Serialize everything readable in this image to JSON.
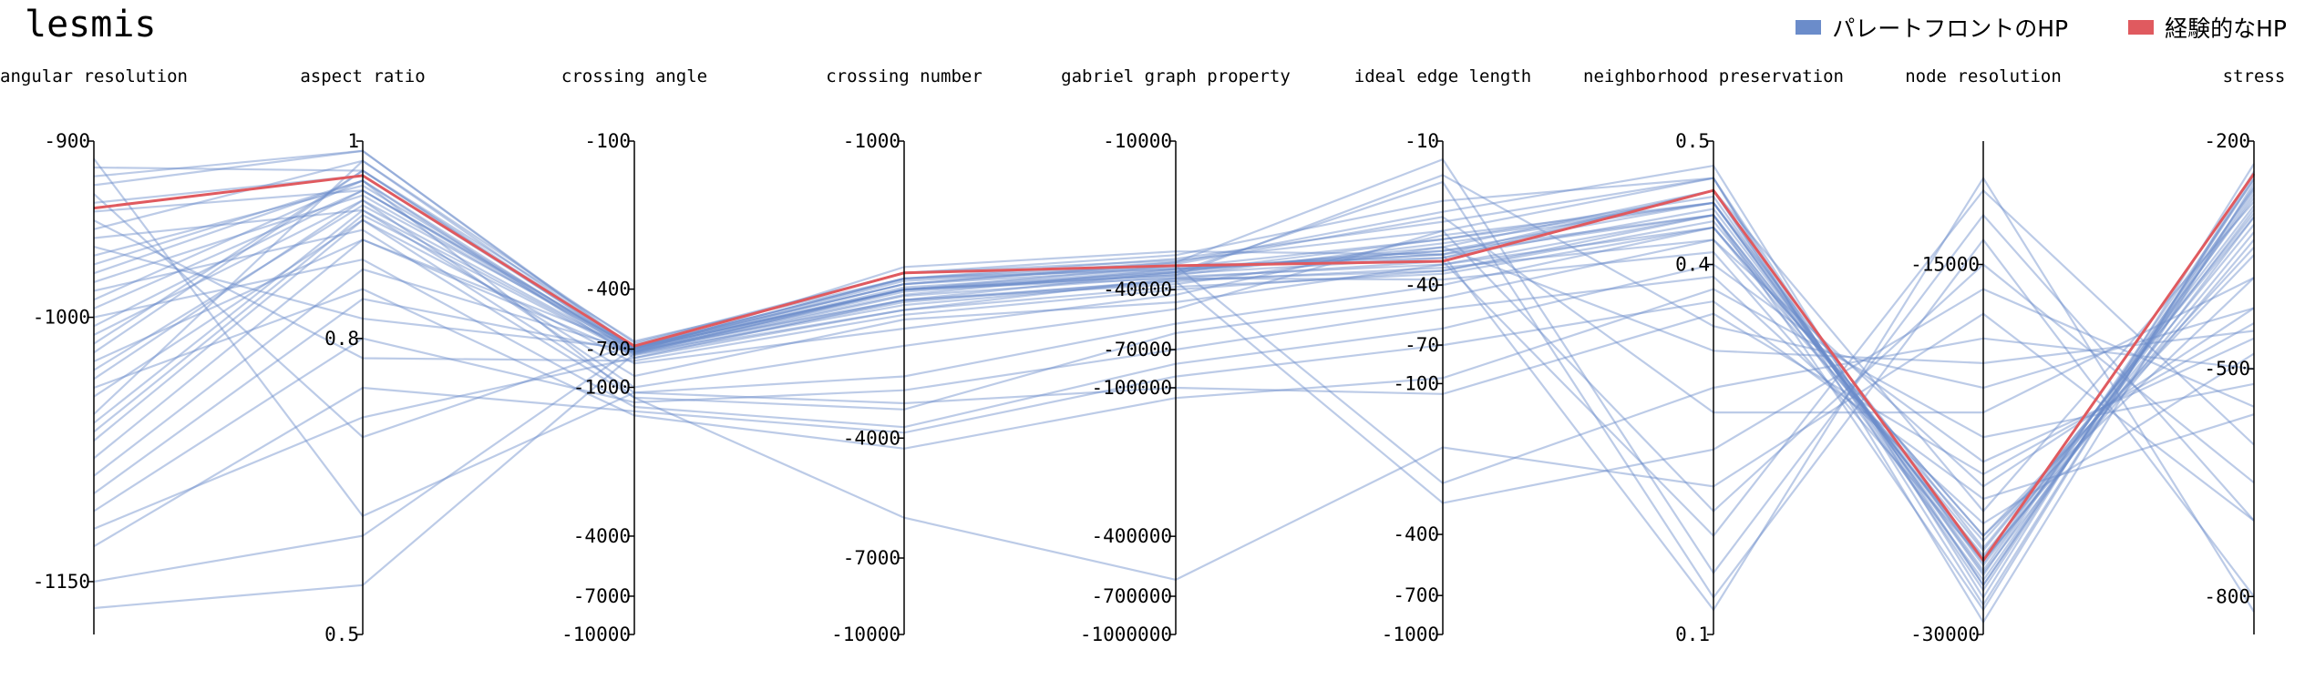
{
  "title": "lesmis",
  "legend": {
    "items": [
      {
        "label": "パレートフロントのHP",
        "color": "#6b8cca"
      },
      {
        "label": "経験的なHP",
        "color": "#e05a5f"
      }
    ]
  },
  "chart_data": {
    "type": "parallel-coordinates",
    "title": "lesmis",
    "grid": false,
    "legend_position": "top-right",
    "axes": [
      {
        "name": "angular resolution",
        "scale": "linear",
        "domain": [
          -900,
          -1180
        ],
        "ticks": [
          -900,
          -1000,
          -1150
        ]
      },
      {
        "name": "aspect ratio",
        "scale": "linear",
        "domain": [
          1,
          0.5
        ],
        "ticks": [
          1,
          0.8,
          0.5
        ]
      },
      {
        "name": "crossing angle",
        "scale": "symlog",
        "domain": [
          -100,
          -10000
        ],
        "ticks": [
          -100,
          -400,
          -700,
          -1000,
          -4000,
          -7000,
          -10000
        ]
      },
      {
        "name": "crossing number",
        "scale": "symlog",
        "domain": [
          -1000,
          -10000
        ],
        "ticks": [
          -1000,
          -4000,
          -7000,
          -10000
        ]
      },
      {
        "name": "gabriel graph property",
        "scale": "symlog",
        "domain": [
          -10000,
          -1000000
        ],
        "ticks": [
          -10000,
          -40000,
          -70000,
          -100000,
          -400000,
          -700000,
          -1000000
        ]
      },
      {
        "name": "ideal edge length",
        "scale": "symlog",
        "domain": [
          -10,
          -1000
        ],
        "ticks": [
          -10,
          -40,
          -70,
          -100,
          -400,
          -700,
          -1000
        ]
      },
      {
        "name": "neighborhood preservation",
        "scale": "linear",
        "domain": [
          0.5,
          0.1
        ],
        "ticks": [
          0.5,
          0.4,
          0.1
        ]
      },
      {
        "name": "node resolution",
        "scale": "linear",
        "domain": [
          -10000,
          -30000
        ],
        "ticks": [
          -15000,
          -30000
        ]
      },
      {
        "name": "stress",
        "scale": "linear",
        "domain": [
          -200,
          -850
        ],
        "ticks": [
          -200,
          -500,
          -800
        ]
      }
    ],
    "series": [
      {
        "name": "経験的なHP",
        "color": "#e05a5f",
        "values": [
          [
            -938,
            0.965,
            -680,
            -1850,
            -32000,
            -32,
            0.46,
            -27000,
            -243
          ]
        ]
      },
      {
        "name": "パレートフロントのHP",
        "color": "#6b8cca",
        "values": [
          [
            -915,
            0.97,
            -650,
            -1900,
            -30000,
            -22,
            0.47,
            -28000,
            -260
          ],
          [
            -925,
            0.99,
            -700,
            -2000,
            -34000,
            -26,
            0.45,
            -27500,
            -300
          ],
          [
            -940,
            0.95,
            -720,
            -1800,
            -28000,
            -30,
            0.44,
            -29000,
            -240
          ],
          [
            -955,
            0.93,
            -900,
            -2300,
            -45000,
            -33,
            0.43,
            -26000,
            -350
          ],
          [
            -970,
            0.96,
            -760,
            -2100,
            -38000,
            -28,
            0.46,
            -25000,
            -280
          ],
          [
            -985,
            0.91,
            -1100,
            -3500,
            -60000,
            -45,
            0.42,
            -24000,
            -420
          ],
          [
            -1000,
            0.88,
            -1200,
            -3800,
            -80000,
            -60,
            0.4,
            -23000,
            -460
          ],
          [
            -1010,
            0.94,
            -690,
            -1950,
            -31000,
            -20,
            0.48,
            -28500,
            -230
          ],
          [
            -1025,
            0.9,
            -740,
            -2200,
            -36000,
            -38,
            0.41,
            -27000,
            -320
          ],
          [
            -1040,
            0.85,
            -1300,
            -4200,
            -110000,
            -95,
            0.38,
            -22000,
            -520
          ],
          [
            -1055,
            0.98,
            -660,
            -1850,
            -29000,
            -18,
            0.47,
            -29500,
            -255
          ],
          [
            -1070,
            0.92,
            -800,
            -2400,
            -42000,
            -25,
            0.45,
            -26500,
            -300
          ],
          [
            -1090,
            0.87,
            -710,
            -2050,
            -33000,
            -29,
            0.44,
            -27800,
            -270
          ],
          [
            -1110,
            0.8,
            -1150,
            -3200,
            -70000,
            -50,
            0.39,
            -25500,
            -480
          ],
          [
            -1130,
            0.75,
            -1250,
            -3900,
            -90000,
            -70,
            0.37,
            -24500,
            -560
          ],
          [
            -1150,
            0.6,
            -690,
            -1900,
            -32000,
            -31,
            0.46,
            -28200,
            -250
          ],
          [
            -1165,
            0.55,
            -730,
            -2000,
            -35000,
            -27,
            0.45,
            -27200,
            -290
          ],
          [
            -910,
            0.62,
            -1050,
            -3000,
            -55000,
            -40,
            0.43,
            -26000,
            -380
          ],
          [
            -930,
            0.7,
            -670,
            -1850,
            -30500,
            -24,
            0.47,
            -28800,
            -245
          ],
          [
            -945,
            0.78,
            -780,
            -2250,
            -40000,
            -35,
            0.44,
            -27000,
            -330
          ],
          [
            -960,
            0.82,
            -700,
            -1950,
            -33000,
            -30,
            0.46,
            -28000,
            -265
          ],
          [
            -990,
            0.96,
            -720,
            -2000,
            -36000,
            -32,
            0.18,
            -12000,
            -600
          ],
          [
            -1005,
            0.95,
            -690,
            -1900,
            -31000,
            -12,
            0.15,
            -13000,
            -700
          ],
          [
            -1020,
            0.97,
            -710,
            -2100,
            -34000,
            -15,
            0.13,
            -14000,
            -800
          ],
          [
            -1035,
            0.94,
            -1000,
            -2600,
            -48000,
            -24,
            0.2,
            -15000,
            -650
          ],
          [
            -1060,
            0.93,
            -730,
            -2150,
            -37000,
            -300,
            0.25,
            -16000,
            -550
          ],
          [
            -1080,
            0.9,
            -690,
            -2000,
            -32000,
            -250,
            0.3,
            -18000,
            -500
          ],
          [
            -920,
            0.99,
            -690,
            -1900,
            -33000,
            -30,
            0.12,
            -11500,
            -820
          ],
          [
            -950,
            0.98,
            -700,
            -2000,
            -35000,
            -14,
            0.35,
            -20000,
            -420
          ],
          [
            -975,
            0.96,
            -1100,
            -5800,
            -600000,
            -180,
            0.22,
            -17000,
            -700
          ],
          [
            -995,
            0.95,
            -700,
            -2000,
            -34000,
            -28,
            0.33,
            -19000,
            -450
          ],
          [
            -1015,
            0.97,
            -690,
            -1950,
            -31500,
            -21,
            0.28,
            -21000,
            -380
          ],
          [
            -1045,
            0.92,
            -1050,
            -3400,
            -100000,
            -110,
            0.36,
            -23500,
            -440
          ],
          [
            -1100,
            0.84,
            -720,
            -2100,
            -37000,
            -34,
            0.42,
            -26200,
            -340
          ],
          [
            -1120,
            0.72,
            -760,
            -2200,
            -39000,
            -36,
            0.43,
            -26800,
            -310
          ],
          [
            -935,
            0.965,
            -695,
            -1920,
            -32500,
            -26,
            0.455,
            -27600,
            -250
          ],
          [
            -965,
            0.955,
            -705,
            -1980,
            -33500,
            -29,
            0.45,
            -27400,
            -262
          ],
          [
            -980,
            0.945,
            -715,
            -2020,
            -34500,
            -31,
            0.445,
            -27100,
            -275
          ],
          [
            -1030,
            0.935,
            -725,
            -2060,
            -35500,
            -33,
            0.44,
            -26900,
            -285
          ],
          [
            -1065,
            0.925,
            -735,
            -2120,
            -36500,
            -35,
            0.435,
            -26600,
            -295
          ]
        ]
      }
    ]
  }
}
